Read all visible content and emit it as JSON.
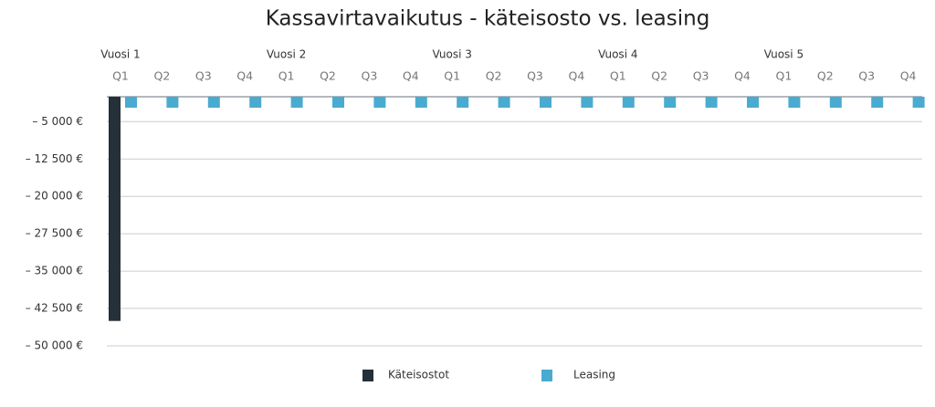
{
  "chart_data": {
    "type": "bar",
    "title": "Kassavirtavaikutus - käteisosto vs. leasing",
    "categories": [
      "Q1",
      "Q2",
      "Q3",
      "Q4",
      "Q1",
      "Q2",
      "Q3",
      "Q4",
      "Q1",
      "Q2",
      "Q3",
      "Q4",
      "Q1",
      "Q2",
      "Q3",
      "Q4",
      "Q1",
      "Q2",
      "Q3",
      "Q4"
    ],
    "groups": [
      "Vuosi 1",
      "Vuosi 2",
      "Vuosi 3",
      "Vuosi 4",
      "Vuosi 5"
    ],
    "series": [
      {
        "name": "Käteisostot",
        "color": "#253038",
        "values": [
          -45000,
          0,
          0,
          0,
          0,
          0,
          0,
          0,
          0,
          0,
          0,
          0,
          0,
          0,
          0,
          0,
          0,
          0,
          0,
          0
        ]
      },
      {
        "name": "Leasing",
        "color": "#4aabd0",
        "values": [
          -2200,
          -2200,
          -2200,
          -2200,
          -2200,
          -2200,
          -2200,
          -2200,
          -2200,
          -2200,
          -2200,
          -2200,
          -2200,
          -2200,
          -2200,
          -2200,
          -2200,
          -2200,
          -2200,
          -2200
        ]
      }
    ],
    "ylim": [
      -50000,
      0
    ],
    "yticks": [
      {
        "value": -5000,
        "label": "– 5 000 €"
      },
      {
        "value": -12500,
        "label": "– 12 500 €"
      },
      {
        "value": -20000,
        "label": "– 20 000 €"
      },
      {
        "value": -27500,
        "label": "– 27 500 €"
      },
      {
        "value": -35000,
        "label": "– 35 000 €"
      },
      {
        "value": -42500,
        "label": "– 42 500 €"
      },
      {
        "value": -50000,
        "label": "– 50 000 €"
      }
    ],
    "grid": true,
    "legend": "bottom"
  }
}
